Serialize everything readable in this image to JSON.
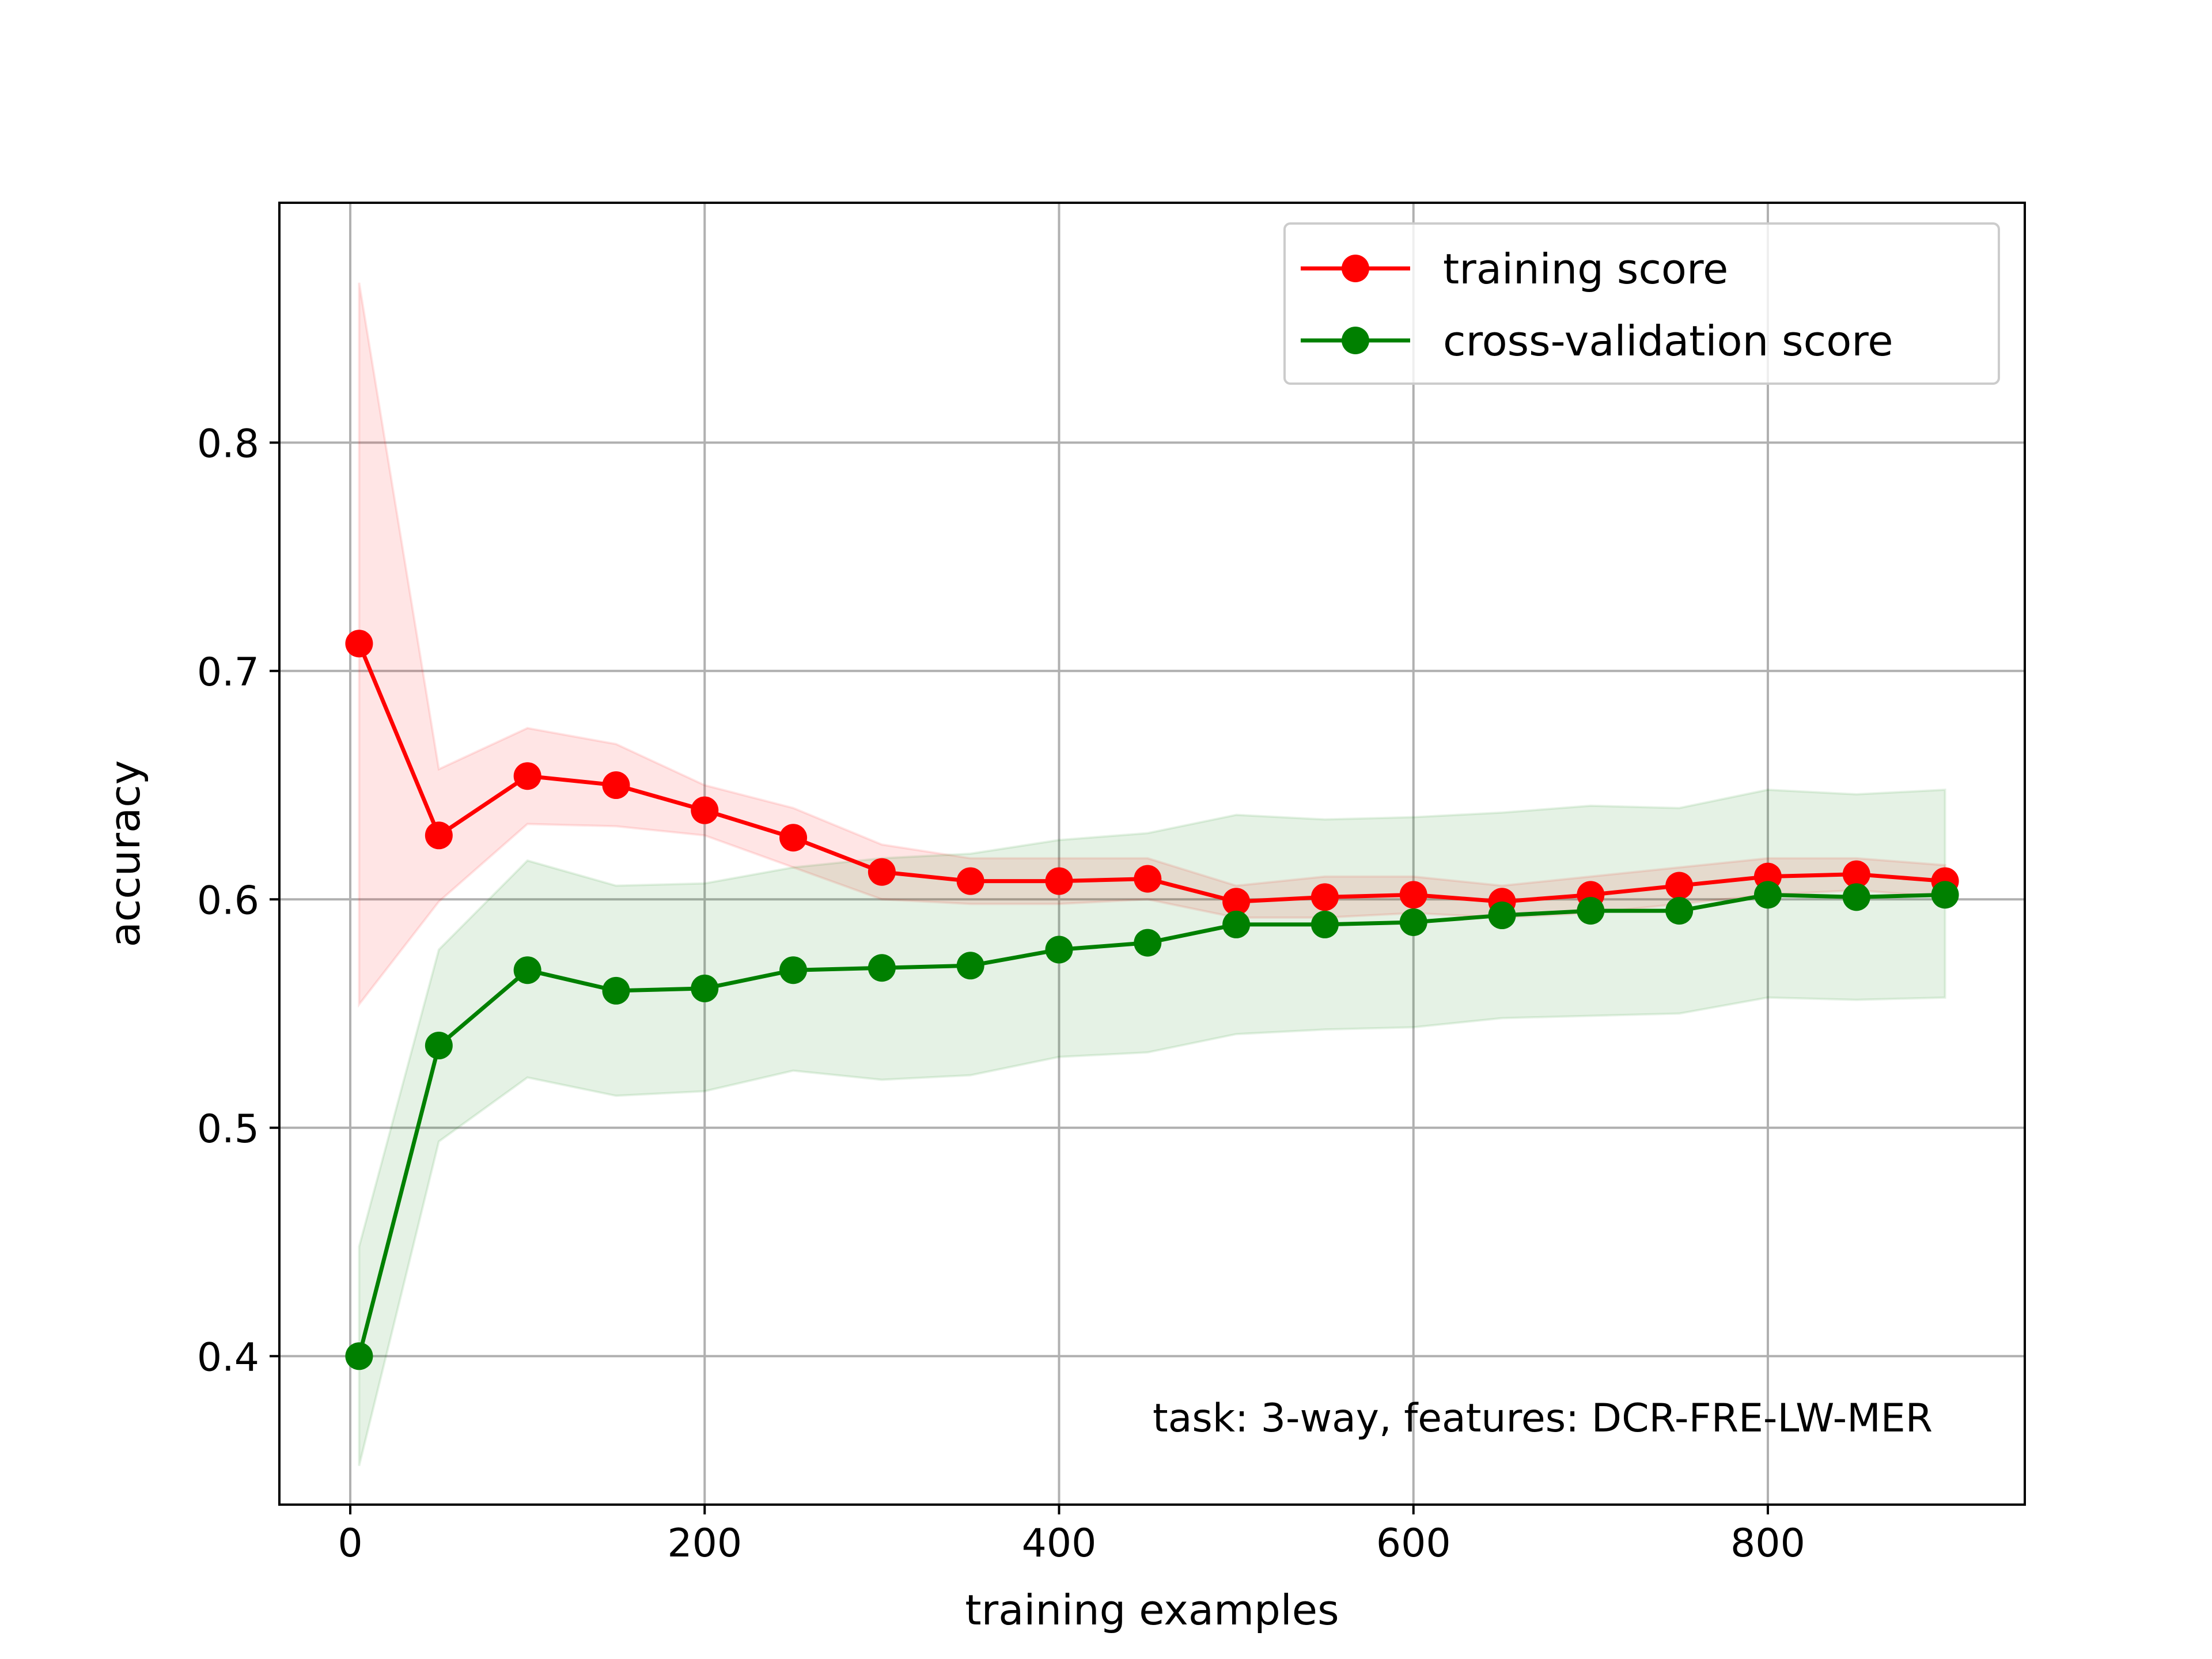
{
  "chart_data": {
    "type": "line",
    "title": "",
    "xlabel": "training examples",
    "ylabel": "accuracy",
    "xlim": [
      -40,
      945
    ],
    "ylim": [
      0.335,
      0.905
    ],
    "x_ticks": [
      0,
      200,
      400,
      600,
      800
    ],
    "x_tick_labels": [
      "0",
      "200",
      "400",
      "600",
      "800"
    ],
    "y_ticks": [
      0.4,
      0.5,
      0.6,
      0.7,
      0.8
    ],
    "y_tick_labels": [
      "0.4",
      "0.5",
      "0.6",
      "0.7",
      "0.8"
    ],
    "grid": true,
    "legend_position": "top-right",
    "annotation": "task: 3-way, features: DCR-FRE-LW-MER",
    "x": [
      5,
      50,
      100,
      150,
      200,
      250,
      300,
      350,
      400,
      450,
      500,
      550,
      600,
      650,
      700,
      750,
      800,
      850,
      900
    ],
    "series": [
      {
        "name": "training score",
        "color": "#ff0000",
        "band_color": "#ff0000",
        "values": [
          0.712,
          0.628,
          0.654,
          0.65,
          0.639,
          0.627,
          0.612,
          0.608,
          0.608,
          0.609,
          0.599,
          0.601,
          0.602,
          0.599,
          0.602,
          0.606,
          0.61,
          0.611,
          0.608
        ],
        "upper": [
          0.87,
          0.657,
          0.675,
          0.668,
          0.65,
          0.64,
          0.624,
          0.618,
          0.618,
          0.618,
          0.606,
          0.61,
          0.61,
          0.606,
          0.61,
          0.614,
          0.618,
          0.618,
          0.615
        ],
        "lower": [
          0.554,
          0.599,
          0.633,
          0.632,
          0.628,
          0.614,
          0.6,
          0.598,
          0.598,
          0.6,
          0.592,
          0.592,
          0.594,
          0.592,
          0.594,
          0.598,
          0.602,
          0.604,
          0.601
        ]
      },
      {
        "name": "cross-validation score",
        "color": "#008000",
        "band_color": "#008000",
        "values": [
          0.4,
          0.536,
          0.569,
          0.56,
          0.561,
          0.569,
          0.57,
          0.571,
          0.578,
          0.581,
          0.589,
          0.589,
          0.59,
          0.593,
          0.595,
          0.595,
          0.602,
          0.601,
          0.602
        ],
        "upper": [
          0.448,
          0.578,
          0.617,
          0.606,
          0.607,
          0.614,
          0.618,
          0.62,
          0.626,
          0.629,
          0.637,
          0.635,
          0.636,
          0.638,
          0.641,
          0.64,
          0.648,
          0.646,
          0.648
        ],
        "lower": [
          0.352,
          0.494,
          0.522,
          0.514,
          0.516,
          0.525,
          0.521,
          0.523,
          0.531,
          0.533,
          0.541,
          0.543,
          0.544,
          0.548,
          0.549,
          0.55,
          0.557,
          0.556,
          0.557
        ]
      }
    ]
  }
}
